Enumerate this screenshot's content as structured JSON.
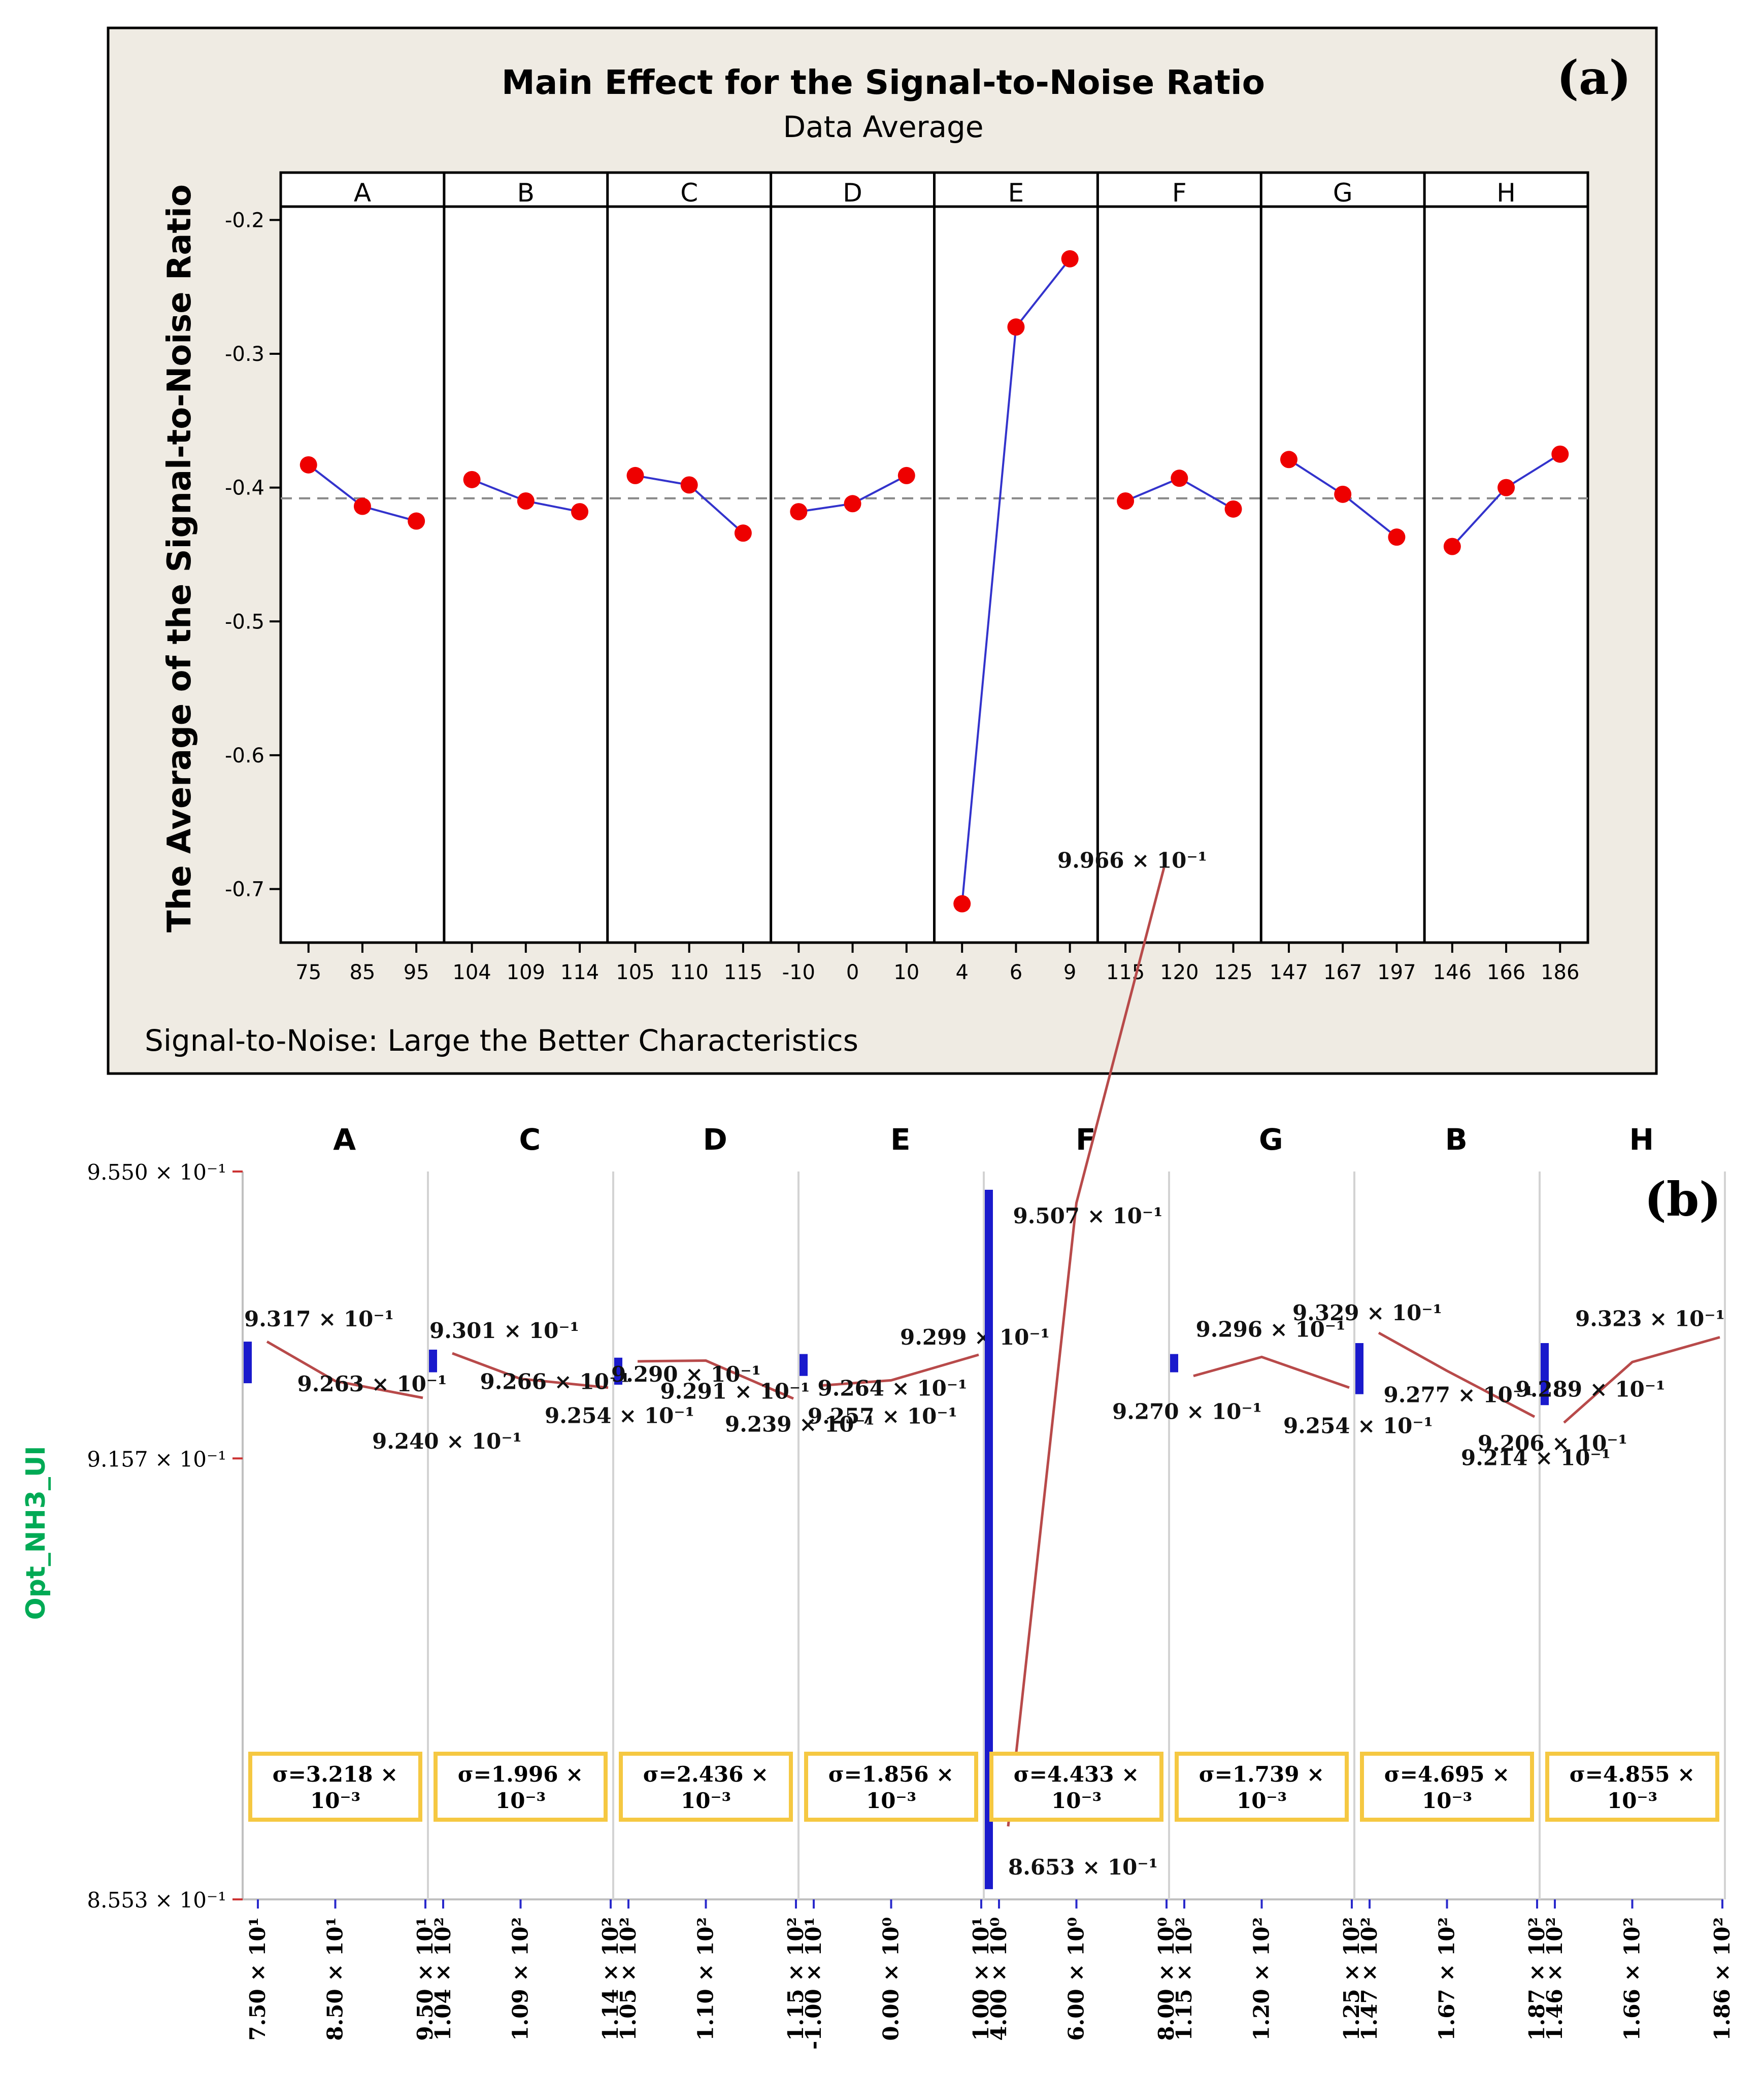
{
  "chart_data": [
    {
      "type": "line",
      "panel_label": "(a)",
      "title": "Main Effect for the Signal-to-Noise Ratio",
      "subtitle": "Data Average",
      "ylabel": "The Average of the Signal-to-Noise Ratio",
      "footnote": "Signal-to-Noise: Large the Better Characteristics",
      "ylim": [
        -0.74,
        -0.19
      ],
      "yticks": [
        -0.2,
        -0.3,
        -0.4,
        -0.5,
        -0.6,
        -0.7
      ],
      "ytick_labels": [
        "-0.2",
        "-0.3",
        "-0.4",
        "-0.5",
        "-0.6",
        "-0.7"
      ],
      "reference_line": -0.408,
      "factors": [
        {
          "name": "A",
          "levels": [
            "75",
            "85",
            "95"
          ],
          "values": [
            -0.383,
            -0.414,
            -0.425
          ]
        },
        {
          "name": "B",
          "levels": [
            "104",
            "109",
            "114"
          ],
          "values": [
            -0.394,
            -0.41,
            -0.418
          ]
        },
        {
          "name": "C",
          "levels": [
            "105",
            "110",
            "115"
          ],
          "values": [
            -0.391,
            -0.398,
            -0.434
          ]
        },
        {
          "name": "D",
          "levels": [
            "-10",
            "0",
            "10"
          ],
          "values": [
            -0.418,
            -0.412,
            -0.391
          ]
        },
        {
          "name": "E",
          "levels": [
            "4",
            "6",
            "9"
          ],
          "values": [
            -0.711,
            -0.28,
            -0.229
          ]
        },
        {
          "name": "F",
          "levels": [
            "115",
            "120",
            "125"
          ],
          "values": [
            -0.41,
            -0.393,
            -0.416
          ]
        },
        {
          "name": "G",
          "levels": [
            "147",
            "167",
            "197"
          ],
          "values": [
            -0.379,
            -0.405,
            -0.437
          ]
        },
        {
          "name": "H",
          "levels": [
            "146",
            "166",
            "186"
          ],
          "values": [
            -0.444,
            -0.4,
            -0.375
          ]
        }
      ]
    },
    {
      "type": "line",
      "panel_label": "(b)",
      "ylabel": "Opt_NH3_UI",
      "ylim": [
        0.8553,
        0.955
      ],
      "ytick_labels": [
        "9.550 × 10⁻¹",
        "9.157 × 10⁻¹",
        "8.553 × 10⁻¹"
      ],
      "yticks": [
        0.955,
        0.9157,
        0.8553
      ],
      "factors": [
        {
          "name": "A",
          "levels": [
            "7.50 × 10¹",
            "8.50 × 10¹",
            "9.50 × 10¹"
          ],
          "values": [
            0.9317,
            0.9263,
            0.924
          ],
          "value_labels": [
            "9.317 × 10⁻¹",
            "9.263 × 10⁻¹",
            "9.240 × 10⁻¹"
          ],
          "sigma": "σ=3.218 ×",
          "sigma_exp": "10⁻³",
          "bar": [
            0.926,
            0.9317
          ]
        },
        {
          "name": "C",
          "levels": [
            "1.04 × 10²",
            "1.09 × 10²",
            "1.14 × 10²"
          ],
          "values": [
            0.9301,
            0.9266,
            0.9254
          ],
          "value_labels": [
            "9.301 × 10⁻¹",
            "9.266 × 10⁻¹",
            "9.254 × 10⁻¹"
          ],
          "sigma": "σ=1.996 ×",
          "sigma_exp": "10⁻³",
          "bar": [
            0.9275,
            0.9306
          ]
        },
        {
          "name": "D",
          "levels": [
            "1.05 × 10²",
            "1.10 × 10²",
            "1.15 × 10²"
          ],
          "values": [
            0.929,
            0.9291,
            0.9239
          ],
          "value_labels": [
            "9.290 × 10⁻¹",
            "9.291 × 10⁻¹",
            "9.239 × 10⁻¹"
          ],
          "sigma": "σ=2.436 ×",
          "sigma_exp": "10⁻³",
          "bar": [
            0.9258,
            0.9295
          ]
        },
        {
          "name": "E",
          "levels": [
            "-1.00 × 10¹",
            "0.00 × 10⁰",
            "1.00 × 10¹"
          ],
          "values": [
            0.9257,
            0.9264,
            0.9299
          ],
          "value_labels": [
            "9.257 × 10⁻¹",
            "9.264 × 10⁻¹",
            "9.299 × 10⁻¹"
          ],
          "sigma": "σ=1.856 ×",
          "sigma_exp": "10⁻³",
          "bar": [
            0.927,
            0.93
          ]
        },
        {
          "name": "F",
          "levels": [
            "4.00 × 10⁰",
            "6.00 × 10⁰",
            "8.00 × 10⁰"
          ],
          "values": [
            0.8653,
            0.9507,
            0.9966
          ],
          "value_labels": [
            "8.653 × 10⁻¹",
            "9.507 × 10⁻¹",
            "9.966 × 10⁻¹"
          ],
          "sigma": "σ=4.433 ×",
          "sigma_exp": "10⁻³",
          "bar": [
            0.8567,
            0.9525
          ]
        },
        {
          "name": "G",
          "levels": [
            "1.15 × 10²",
            "1.20 × 10²",
            "1.25 × 10²"
          ],
          "values": [
            0.927,
            0.9296,
            0.9254
          ],
          "value_labels": [
            "9.270 × 10⁻¹",
            "9.296 × 10⁻¹",
            "9.254 × 10⁻¹"
          ],
          "sigma": "σ=1.739 ×",
          "sigma_exp": "10⁻³",
          "bar": [
            0.9275,
            0.93
          ]
        },
        {
          "name": "B",
          "levels": [
            "1.47 × 10²",
            "1.67 × 10²",
            "1.87 × 10²"
          ],
          "values": [
            0.9329,
            0.9277,
            0.9214
          ],
          "value_labels": [
            "9.329 × 10⁻¹",
            "9.277 × 10⁻¹",
            "9.214 × 10⁻¹"
          ],
          "sigma": "σ=4.695 ×",
          "sigma_exp": "10⁻³",
          "bar": [
            0.9245,
            0.9315
          ]
        },
        {
          "name": "H",
          "levels": [
            "1.46 × 10²",
            "1.66 × 10²",
            "1.86 × 10²"
          ],
          "values": [
            0.9206,
            0.9289,
            0.9323
          ],
          "value_labels": [
            "9.206 × 10⁻¹",
            "9.289 × 10⁻¹",
            "9.323 × 10⁻¹"
          ],
          "sigma": "σ=4.855 ×",
          "sigma_exp": "10⁻³",
          "bar": [
            0.923,
            0.9315
          ]
        }
      ]
    }
  ],
  "colors": {
    "panel_a_background": "#efebe3",
    "series_line": "#3333cc",
    "marker": "#ee0000",
    "reference_line": "#888888",
    "panel_b_line": "#b84a4a",
    "panel_b_bar": "#1a1acc",
    "sigma_box": "#f5c842",
    "y_axis_label": "#00aa55"
  }
}
